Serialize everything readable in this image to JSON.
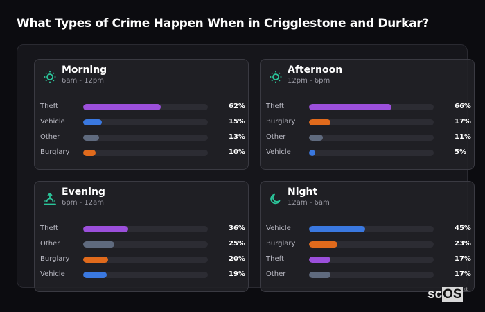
{
  "title": "What Types of Crime Happen When in Crigglestone and Durkar?",
  "colors": {
    "Theft": "#9b4fdb",
    "Vehicle": "#3a78e0",
    "Other": "#5f6a7e",
    "Burglary": "#e06a1c",
    "icon": "#2bc59a"
  },
  "cards": [
    {
      "title": "Morning",
      "subtitle": "6am - 12pm",
      "icon": "sun-icon",
      "rows": [
        {
          "label": "Theft",
          "value": 62,
          "display": "62%"
        },
        {
          "label": "Vehicle",
          "value": 15,
          "display": "15%"
        },
        {
          "label": "Other",
          "value": 13,
          "display": "13%"
        },
        {
          "label": "Burglary",
          "value": 10,
          "display": "10%"
        }
      ]
    },
    {
      "title": "Afternoon",
      "subtitle": "12pm - 6pm",
      "icon": "sun-icon",
      "rows": [
        {
          "label": "Theft",
          "value": 66,
          "display": "66%"
        },
        {
          "label": "Burglary",
          "value": 17,
          "display": "17%"
        },
        {
          "label": "Other",
          "value": 11,
          "display": "11%"
        },
        {
          "label": "Vehicle",
          "value": 5,
          "display": "5%"
        }
      ]
    },
    {
      "title": "Evening",
      "subtitle": "6pm - 12am",
      "icon": "sunset-icon",
      "rows": [
        {
          "label": "Theft",
          "value": 36,
          "display": "36%"
        },
        {
          "label": "Other",
          "value": 25,
          "display": "25%"
        },
        {
          "label": "Burglary",
          "value": 20,
          "display": "20%"
        },
        {
          "label": "Vehicle",
          "value": 19,
          "display": "19%"
        }
      ]
    },
    {
      "title": "Night",
      "subtitle": "12am - 6am",
      "icon": "moon-icon",
      "rows": [
        {
          "label": "Vehicle",
          "value": 45,
          "display": "45%"
        },
        {
          "label": "Burglary",
          "value": 23,
          "display": "23%"
        },
        {
          "label": "Theft",
          "value": 17,
          "display": "17%"
        },
        {
          "label": "Other",
          "value": 17,
          "display": "17%"
        }
      ]
    }
  ],
  "logo": {
    "sc": "sc",
    "os": "OS",
    "reg": "®"
  },
  "chart_data": [
    {
      "type": "bar",
      "title": "Morning (6am - 12pm)",
      "categories": [
        "Theft",
        "Vehicle",
        "Other",
        "Burglary"
      ],
      "values": [
        62,
        15,
        13,
        10
      ],
      "xlabel": "",
      "ylabel": "%",
      "ylim": [
        0,
        100
      ],
      "orientation": "horizontal"
    },
    {
      "type": "bar",
      "title": "Afternoon (12pm - 6pm)",
      "categories": [
        "Theft",
        "Burglary",
        "Other",
        "Vehicle"
      ],
      "values": [
        66,
        17,
        11,
        5
      ],
      "xlabel": "",
      "ylabel": "%",
      "ylim": [
        0,
        100
      ],
      "orientation": "horizontal"
    },
    {
      "type": "bar",
      "title": "Evening (6pm - 12am)",
      "categories": [
        "Theft",
        "Other",
        "Burglary",
        "Vehicle"
      ],
      "values": [
        36,
        25,
        20,
        19
      ],
      "xlabel": "",
      "ylabel": "%",
      "ylim": [
        0,
        100
      ],
      "orientation": "horizontal"
    },
    {
      "type": "bar",
      "title": "Night (12am - 6am)",
      "categories": [
        "Vehicle",
        "Burglary",
        "Theft",
        "Other"
      ],
      "values": [
        45,
        23,
        17,
        17
      ],
      "xlabel": "",
      "ylabel": "%",
      "ylim": [
        0,
        100
      ],
      "orientation": "horizontal"
    }
  ]
}
